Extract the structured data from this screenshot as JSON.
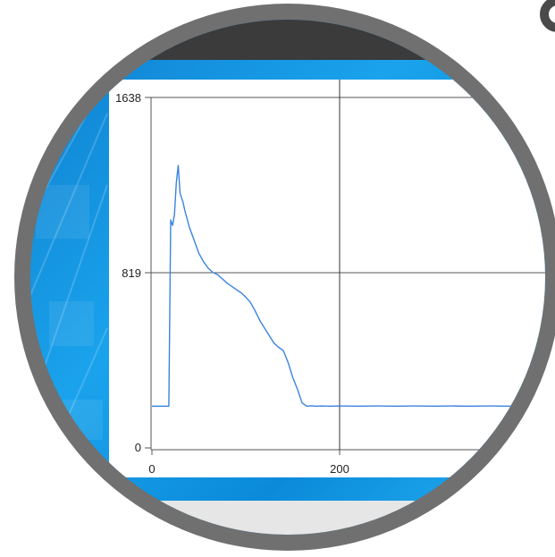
{
  "chart_data": {
    "type": "line",
    "title": "",
    "xlabel": "",
    "ylabel": "",
    "xlim": [
      0,
      400
    ],
    "ylim": [
      0,
      1638
    ],
    "x_ticks": [
      0,
      200
    ],
    "y_ticks": [
      0,
      819,
      1638
    ],
    "x_tick_labels": [
      "0",
      "200"
    ],
    "y_tick_labels": [
      "0",
      "819",
      "1638"
    ],
    "crosshair": {
      "x": 200,
      "y": 819
    },
    "grid": true,
    "series": [
      {
        "color": "#3a84de",
        "x": [
          0,
          5,
          10,
          15,
          18,
          20,
          22,
          24,
          26,
          28,
          30,
          33,
          35,
          40,
          45,
          50,
          55,
          60,
          65,
          70,
          75,
          80,
          85,
          90,
          95,
          100,
          105,
          110,
          115,
          120,
          125,
          130,
          135,
          140,
          145,
          150,
          155,
          160,
          165,
          170,
          175,
          180,
          190,
          200,
          220,
          240,
          260,
          280,
          300,
          320,
          340,
          360,
          380,
          400
        ],
        "y": [
          195,
          195,
          195,
          195,
          195,
          1065,
          1040,
          1090,
          1240,
          1320,
          1190,
          1150,
          1110,
          1030,
          970,
          910,
          870,
          840,
          820,
          810,
          790,
          770,
          755,
          740,
          725,
          705,
          680,
          640,
          595,
          560,
          525,
          490,
          470,
          455,
          400,
          330,
          275,
          210,
          195,
          197,
          195,
          196,
          195,
          196,
          195,
          196,
          195,
          196,
          195,
          196,
          195,
          196,
          195,
          196
        ]
      }
    ]
  },
  "axis_labels": {
    "y_top": "1638",
    "y_mid": "819",
    "y_zero": "0",
    "x_zero": "0",
    "x_200": "200"
  },
  "colors": {
    "title_strip": "#3b3b3b",
    "frame_blue": "#0a90de",
    "lens_ring": "#707070",
    "plot_background": "#ffffff",
    "trace": "#3a84de"
  }
}
